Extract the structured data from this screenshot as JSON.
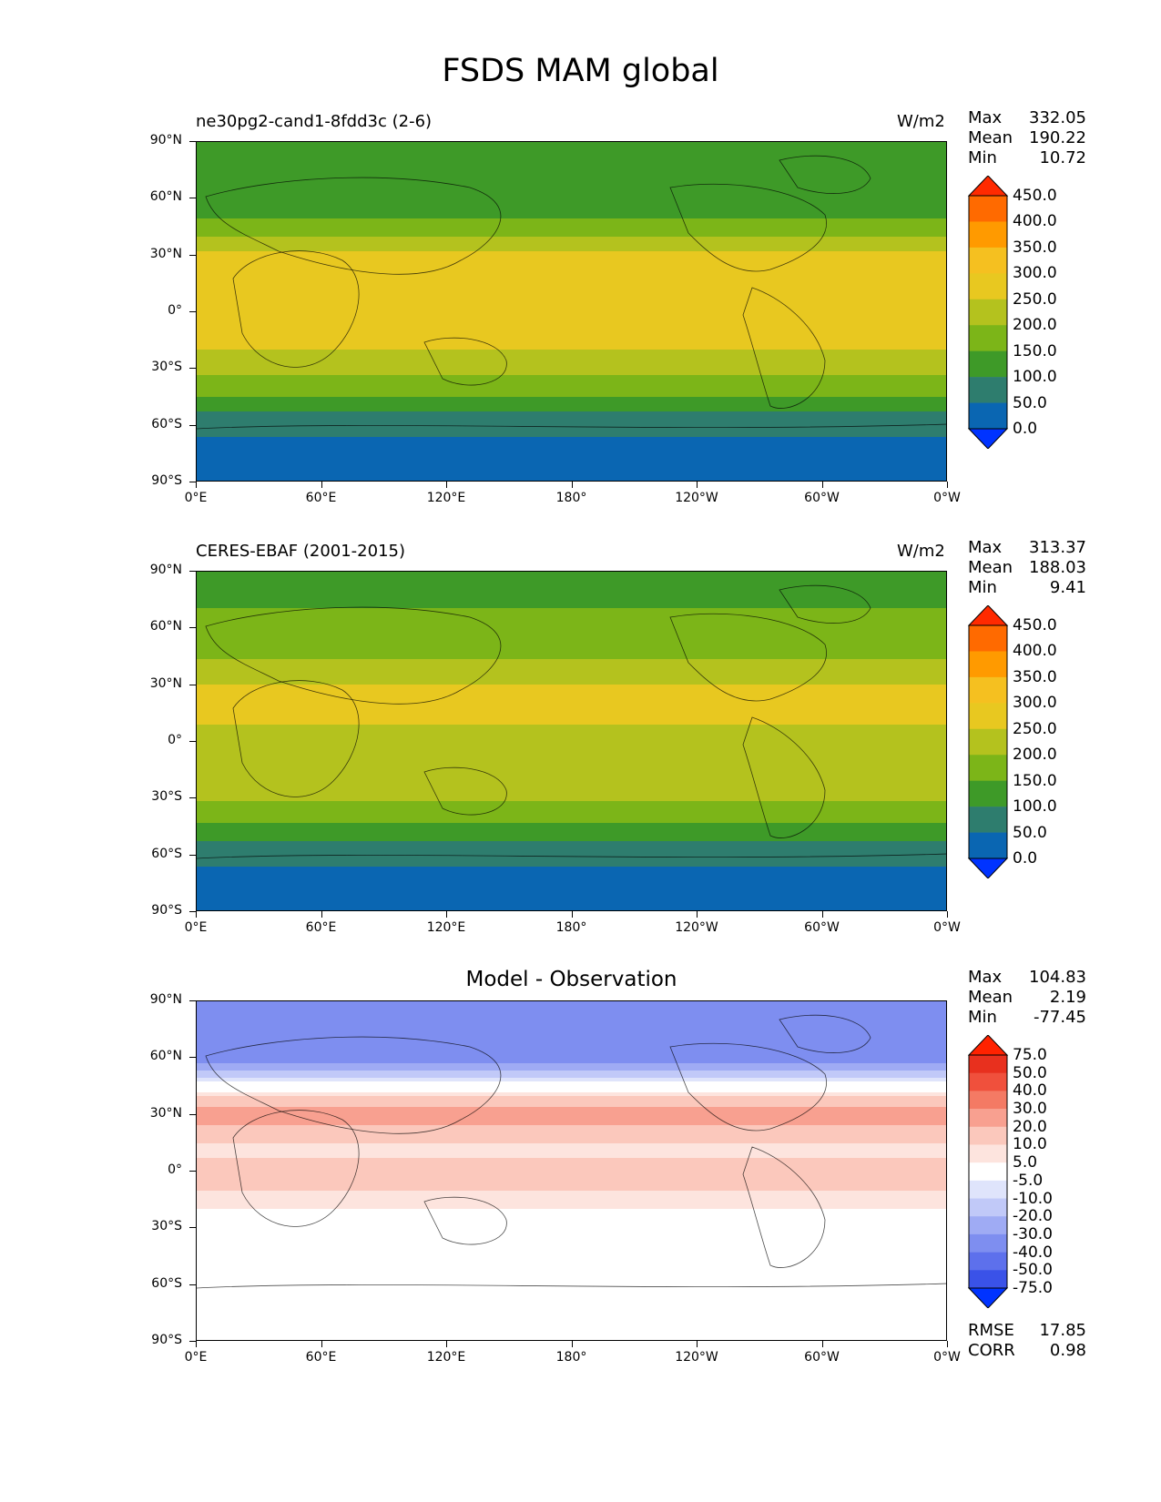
{
  "title": "FSDS MAM global",
  "chart_data": [
    {
      "type": "heatmap",
      "panel_label": "ne30pg2-cand1-8fdd3c (2-6)",
      "units": "W/m2",
      "stats": {
        "max": "332.05",
        "mean": "190.22",
        "min": "10.72"
      },
      "x_ticks": [
        "0°E",
        "60°E",
        "120°E",
        "180°",
        "120°W",
        "60°W",
        "0°W"
      ],
      "y_ticks": [
        "90°N",
        "60°N",
        "30°N",
        "0°",
        "30°S",
        "60°S",
        "90°S"
      ],
      "colorbar_ticks": [
        "450.0",
        "400.0",
        "350.0",
        "300.0",
        "250.0",
        "200.0",
        "150.0",
        "100.0",
        "50.0",
        "0.0"
      ],
      "colorbar_colors": [
        "#ff2a00",
        "#ff6a00",
        "#ff9a00",
        "#f5c020",
        "#e8c820",
        "#b4c21e",
        "#7cb518",
        "#3e9a28",
        "#2e7d6e",
        "#0a66b2",
        "#0033ff"
      ],
      "zonal_profile": {
        "lat": [
          90,
          80,
          70,
          60,
          50,
          40,
          30,
          20,
          10,
          0,
          -10,
          -20,
          -30,
          -40,
          -50,
          -60,
          -70,
          -80,
          -90
        ],
        "value": [
          150,
          120,
          110,
          120,
          150,
          200,
          260,
          300,
          270,
          250,
          260,
          250,
          220,
          170,
          120,
          60,
          40,
          40,
          40
        ]
      }
    },
    {
      "type": "heatmap",
      "panel_label": "CERES-EBAF (2001-2015)",
      "units": "W/m2",
      "stats": {
        "max": "313.37",
        "mean": "188.03",
        "min": "9.41"
      },
      "x_ticks": [
        "0°E",
        "60°E",
        "120°E",
        "180°",
        "120°W",
        "60°W",
        "0°W"
      ],
      "y_ticks": [
        "90°N",
        "60°N",
        "30°N",
        "0°",
        "30°S",
        "60°S",
        "90°S"
      ],
      "colorbar_ticks": [
        "450.0",
        "400.0",
        "350.0",
        "300.0",
        "250.0",
        "200.0",
        "150.0",
        "100.0",
        "50.0",
        "0.0"
      ],
      "colorbar_colors": [
        "#ff2a00",
        "#ff6a00",
        "#ff9a00",
        "#f5c020",
        "#e8c820",
        "#b4c21e",
        "#7cb518",
        "#3e9a28",
        "#2e7d6e",
        "#0a66b2",
        "#0033ff"
      ],
      "zonal_profile": {
        "lat": [
          90,
          80,
          70,
          60,
          50,
          40,
          30,
          20,
          10,
          0,
          -10,
          -20,
          -30,
          -40,
          -50,
          -60,
          -70,
          -80,
          -90
        ],
        "value": [
          150,
          140,
          150,
          160,
          180,
          210,
          250,
          270,
          250,
          240,
          250,
          240,
          210,
          160,
          110,
          60,
          40,
          40,
          40
        ]
      }
    },
    {
      "type": "heatmap",
      "panel_label": "Model - Observation",
      "stats": {
        "max": "104.83",
        "mean": "2.19",
        "min": "-77.45"
      },
      "x_ticks": [
        "0°E",
        "60°E",
        "120°E",
        "180°",
        "120°W",
        "60°W",
        "0°W"
      ],
      "y_ticks": [
        "90°N",
        "60°N",
        "30°N",
        "0°",
        "30°S",
        "60°S",
        "90°S"
      ],
      "colorbar_ticks": [
        "75.0",
        "50.0",
        "40.0",
        "30.0",
        "20.0",
        "10.0",
        "5.0",
        "-5.0",
        "-10.0",
        "-20.0",
        "-30.0",
        "-40.0",
        "-50.0",
        "-75.0"
      ],
      "colorbar_colors": [
        "#ff2200",
        "#e8301e",
        "#f0503c",
        "#f47a64",
        "#f8a090",
        "#fbc8bc",
        "#fde4de",
        "#ffffff",
        "#dfe4fb",
        "#c1c9f8",
        "#9fabf4",
        "#7e8ef0",
        "#5d70ec",
        "#3a52e8",
        "#0033ff"
      ],
      "zonal_profile": {
        "lat": [
          90,
          80,
          70,
          60,
          50,
          40,
          30,
          20,
          10,
          0,
          -10,
          -20,
          -30,
          -40,
          -50,
          -60,
          -70,
          -80,
          -90
        ],
        "value": [
          -30,
          -40,
          -40,
          -40,
          -10,
          10,
          25,
          15,
          5,
          20,
          10,
          5,
          0,
          -5,
          0,
          0,
          0,
          0,
          0
        ]
      },
      "rmse": "17.85",
      "corr": "0.98"
    }
  ],
  "labels": {
    "max": "Max",
    "mean": "Mean",
    "min": "Min",
    "rmse": "RMSE",
    "corr": "CORR"
  }
}
